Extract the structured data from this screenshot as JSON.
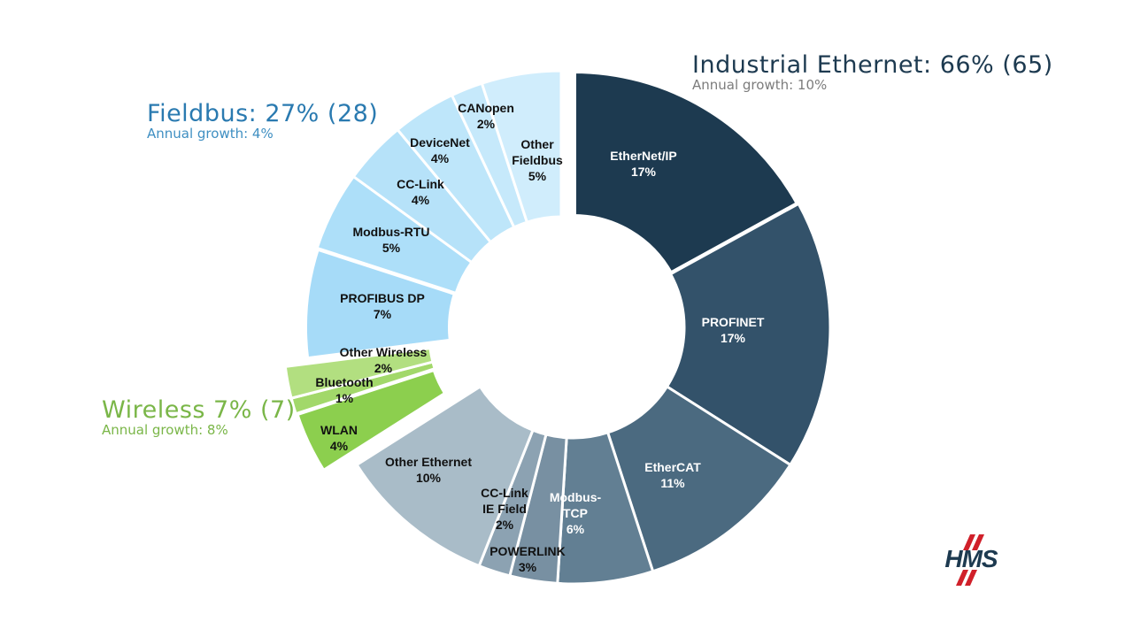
{
  "chart_data": {
    "type": "pie",
    "donut": true,
    "unit": "%",
    "groups": [
      {
        "name": "Industrial Ethernet",
        "title": "Industrial Ethernet: 66% (65)",
        "growth": "Annual growth: 10%",
        "color": "#1d3a50",
        "slices": [
          {
            "label": "EtherNet/IP",
            "value": 17,
            "color": "#1d3a50",
            "text_color": "#ffffff"
          },
          {
            "label": "PROFINET",
            "value": 17,
            "color": "#33526a",
            "text_color": "#ffffff"
          },
          {
            "label": "EtherCAT",
            "value": 11,
            "color": "#4b6a80",
            "text_color": "#ffffff"
          },
          {
            "label": "Modbus-TCP",
            "value": 6,
            "color": "#627f93",
            "text_color": "#ffffff"
          },
          {
            "label": "POWERLINK",
            "value": 3,
            "color": "#7890a2",
            "text_color": "#111111"
          },
          {
            "label": "CC-Link IE Field",
            "value": 2,
            "color": "#8ca2b2",
            "text_color": "#111111"
          },
          {
            "label": "Other Ethernet",
            "value": 10,
            "color": "#a9bcc8",
            "text_color": "#111111"
          }
        ]
      },
      {
        "name": "Wireless",
        "title": "Wireless 7% (7)",
        "growth": "Annual growth: 8%",
        "color": "#7ab648",
        "slices": [
          {
            "label": "WLAN",
            "value": 4,
            "color": "#8ccf4e",
            "text_color": "#111111"
          },
          {
            "label": "Bluetooth",
            "value": 1,
            "color": "#a2d86a",
            "text_color": "#111111"
          },
          {
            "label": "Other Wireless",
            "value": 2,
            "color": "#b2df80",
            "text_color": "#111111"
          }
        ]
      },
      {
        "name": "Fieldbus",
        "title": "Fieldbus: 27% (28)",
        "growth": "Annual growth: 4%",
        "color": "#2a7ab0",
        "slices": [
          {
            "label": "PROFIBUS DP",
            "value": 7,
            "color": "#a6dbf8",
            "text_color": "#111111"
          },
          {
            "label": "Modbus-RTU",
            "value": 5,
            "color": "#addff9",
            "text_color": "#111111"
          },
          {
            "label": "CC-Link",
            "value": 4,
            "color": "#b6e2f9",
            "text_color": "#111111"
          },
          {
            "label": "DeviceNet",
            "value": 4,
            "color": "#bee6fa",
            "text_color": "#111111"
          },
          {
            "label": "CANopen",
            "value": 2,
            "color": "#c6e9fb",
            "text_color": "#111111"
          },
          {
            "label": "Other Fieldbus",
            "value": 5,
            "color": "#d0edfc",
            "text_color": "#111111"
          }
        ]
      }
    ]
  },
  "logo": {
    "text": "HMS",
    "color": "#1d3a50",
    "accent": "#d0202a"
  }
}
